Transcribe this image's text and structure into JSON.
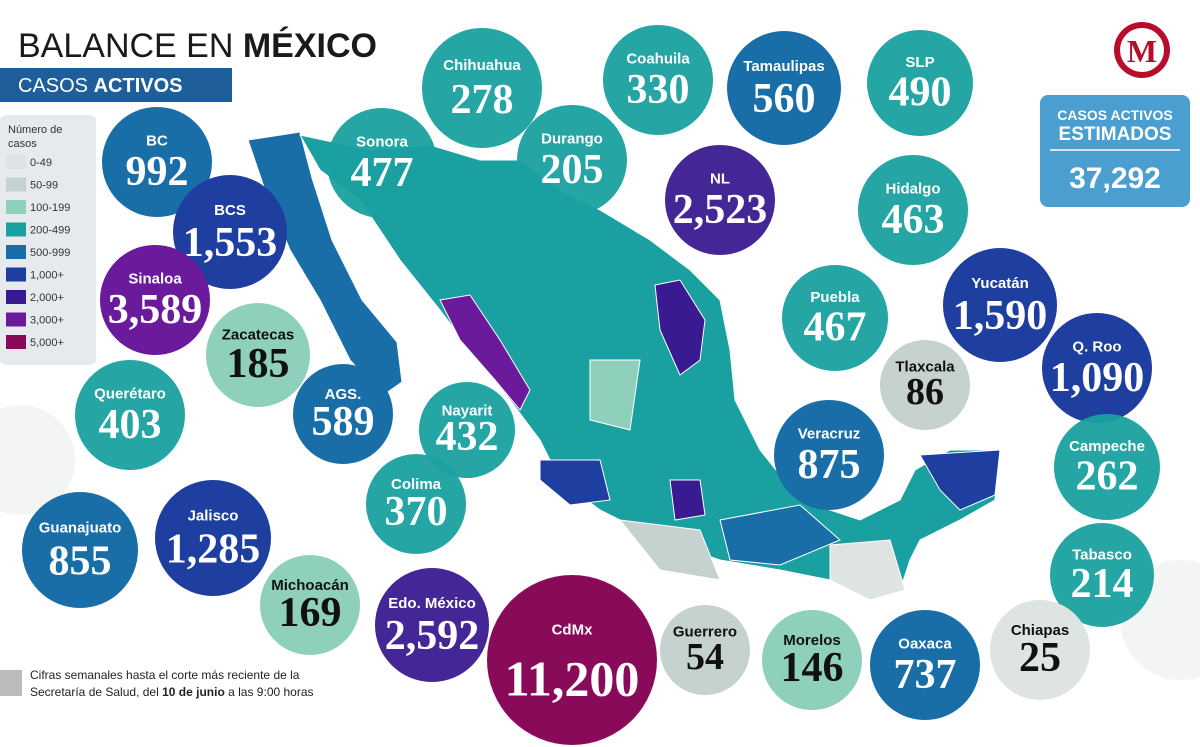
{
  "header": {
    "title_regular": "BALANCE EN",
    "title_bold": "MÉXICO",
    "subtitle_regular": "CASOS",
    "subtitle_bold": "ACTIVOS"
  },
  "logo": "M",
  "legend": {
    "title": [
      "Número de",
      "casos"
    ],
    "items": [
      "0-49",
      "50-99",
      "100-199",
      "200-499",
      "500-999",
      "1,000+",
      "2,000+",
      "3,000+",
      "5,000+"
    ]
  },
  "total": {
    "label_1": "CASOS ACTIVOS",
    "label_2": "ESTIMADOS",
    "value": "37,292"
  },
  "states": [
    {
      "name": "BC",
      "value": "992"
    },
    {
      "name": "BCS",
      "value": "1,553"
    },
    {
      "name": "Sonora",
      "value": "477"
    },
    {
      "name": "Chihuahua",
      "value": "278"
    },
    {
      "name": "Coahuila",
      "value": "330"
    },
    {
      "name": "Durango",
      "value": "205"
    },
    {
      "name": "Tamaulipas",
      "value": "560"
    },
    {
      "name": "SLP",
      "value": "490"
    },
    {
      "name": "NL",
      "value": "2,523"
    },
    {
      "name": "Hidalgo",
      "value": "463"
    },
    {
      "name": "Sinaloa",
      "value": "3,589"
    },
    {
      "name": "Zacatecas",
      "value": "185"
    },
    {
      "name": "Puebla",
      "value": "467"
    },
    {
      "name": "Yucatán",
      "value": "1,590"
    },
    {
      "name": "Tlaxcala",
      "value": "86"
    },
    {
      "name": "Q. Roo",
      "value": "1,090"
    },
    {
      "name": "Querétaro",
      "value": "403"
    },
    {
      "name": "AGS.",
      "value": "589"
    },
    {
      "name": "Nayarit",
      "value": "432"
    },
    {
      "name": "Veracruz",
      "value": "875"
    },
    {
      "name": "Campeche",
      "value": "262"
    },
    {
      "name": "Colima",
      "value": "370"
    },
    {
      "name": "Guanajuato",
      "value": "855"
    },
    {
      "name": "Jalisco",
      "value": "1,285"
    },
    {
      "name": "Tabasco",
      "value": "214"
    },
    {
      "name": "Michoacán",
      "value": "169"
    },
    {
      "name": "Edo. México",
      "value": "2,592"
    },
    {
      "name": "CdMx",
      "value": "11,200"
    },
    {
      "name": "Guerrero",
      "value": "54"
    },
    {
      "name": "Morelos",
      "value": "146"
    },
    {
      "name": "Oaxaca",
      "value": "737"
    },
    {
      "name": "Chiapas",
      "value": "25"
    }
  ],
  "footnote": {
    "line_1": "Cifras semanales hasta el corte más reciente de la",
    "line_2_start": "Secretaría de Salud, del",
    "line_2_bold": "10 de junio",
    "line_2_end": "a las 9:00 horas"
  }
}
